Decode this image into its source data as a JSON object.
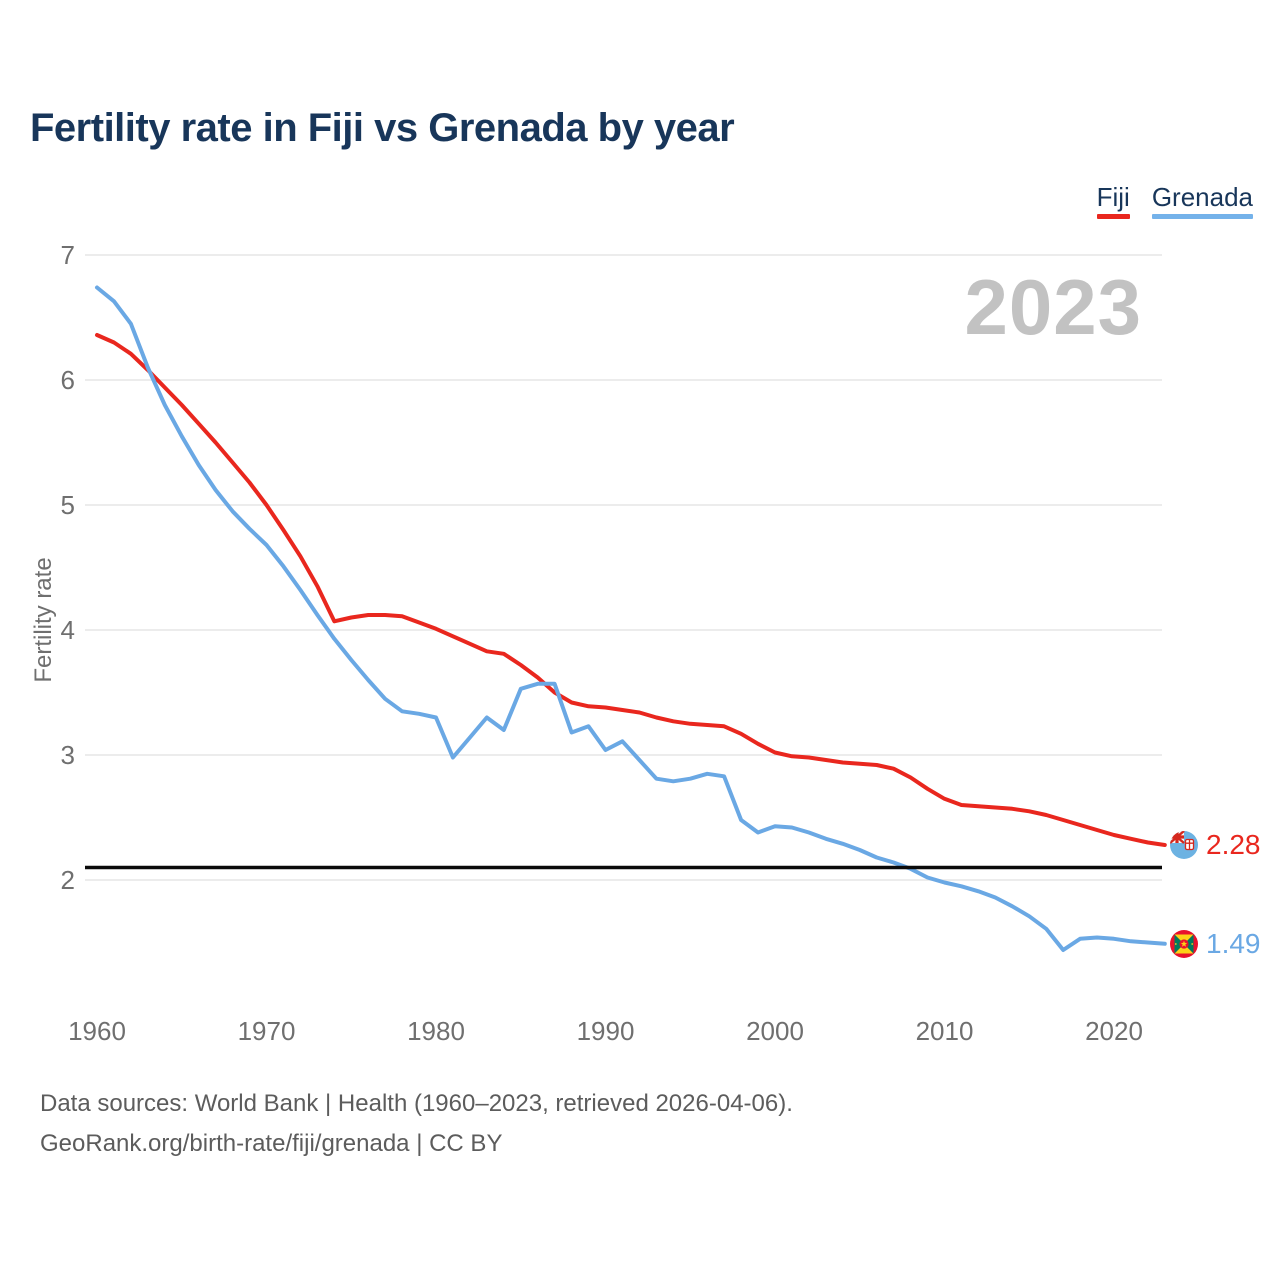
{
  "title": "Fertility rate in Fiji vs Grenada by year",
  "watermark_year": "2023",
  "y_axis_label": "Fertility rate",
  "legend": {
    "items": [
      {
        "label": "Fiji",
        "color": "#e9271e"
      },
      {
        "label": "Grenada",
        "color": "#74b2ea"
      }
    ]
  },
  "footer": {
    "line1": "Data sources: World Bank | Health (1960–2023, retrieved 2026-04-06).",
    "line2": "GeoRank.org/birth-rate/fiji/grenada | CC BY"
  },
  "chart_data": {
    "type": "line",
    "title": "Fertility rate in Fiji vs Grenada by year",
    "xlabel": "",
    "ylabel": "Fertility rate",
    "grid": true,
    "legend_position": "top-right",
    "ylim": [
      1.3,
      7
    ],
    "yticks": [
      7,
      6,
      5,
      4,
      3,
      2
    ],
    "xticks": [
      1960,
      1970,
      1980,
      1990,
      2000,
      2010,
      2020
    ],
    "replacement_rate_line": 2.1,
    "x": [
      1960,
      1961,
      1962,
      1963,
      1964,
      1965,
      1966,
      1967,
      1968,
      1969,
      1970,
      1971,
      1972,
      1973,
      1974,
      1975,
      1976,
      1977,
      1978,
      1979,
      1980,
      1981,
      1982,
      1983,
      1984,
      1985,
      1986,
      1987,
      1988,
      1989,
      1990,
      1991,
      1992,
      1993,
      1994,
      1995,
      1996,
      1997,
      1998,
      1999,
      2000,
      2001,
      2002,
      2003,
      2004,
      2005,
      2006,
      2007,
      2008,
      2009,
      2010,
      2011,
      2012,
      2013,
      2014,
      2015,
      2016,
      2017,
      2018,
      2019,
      2020,
      2021,
      2022,
      2023
    ],
    "series": [
      {
        "name": "Fiji",
        "color": "#e9271e",
        "end_label": "2.28",
        "end_value": 2.28,
        "values": [
          6.36,
          6.3,
          6.21,
          6.08,
          5.94,
          5.8,
          5.65,
          5.5,
          5.34,
          5.18,
          5.0,
          4.8,
          4.59,
          4.35,
          4.07,
          4.1,
          4.12,
          4.12,
          4.11,
          4.06,
          4.01,
          3.95,
          3.89,
          3.83,
          3.81,
          3.72,
          3.62,
          3.5,
          3.42,
          3.39,
          3.38,
          3.36,
          3.34,
          3.3,
          3.27,
          3.25,
          3.24,
          3.23,
          3.17,
          3.09,
          3.02,
          2.99,
          2.98,
          2.96,
          2.94,
          2.93,
          2.92,
          2.89,
          2.82,
          2.73,
          2.65,
          2.6,
          2.59,
          2.58,
          2.57,
          2.55,
          2.52,
          2.48,
          2.44,
          2.4,
          2.36,
          2.33,
          2.3,
          2.28
        ]
      },
      {
        "name": "Grenada",
        "color": "#6aa8e4",
        "end_label": "1.49",
        "end_value": 1.49,
        "values": [
          6.74,
          6.63,
          6.45,
          6.1,
          5.8,
          5.55,
          5.32,
          5.12,
          4.95,
          4.81,
          4.68,
          4.51,
          4.32,
          4.12,
          3.93,
          3.76,
          3.6,
          3.45,
          3.35,
          3.33,
          3.3,
          2.98,
          3.14,
          3.3,
          3.2,
          3.53,
          3.57,
          3.57,
          3.18,
          3.23,
          3.04,
          3.11,
          2.96,
          2.81,
          2.79,
          2.81,
          2.85,
          2.83,
          2.48,
          2.38,
          2.43,
          2.42,
          2.38,
          2.33,
          2.29,
          2.24,
          2.18,
          2.14,
          2.09,
          2.02,
          1.98,
          1.95,
          1.91,
          1.86,
          1.79,
          1.71,
          1.61,
          1.44,
          1.53,
          1.54,
          1.53,
          1.51,
          1.5,
          1.49
        ]
      }
    ]
  }
}
